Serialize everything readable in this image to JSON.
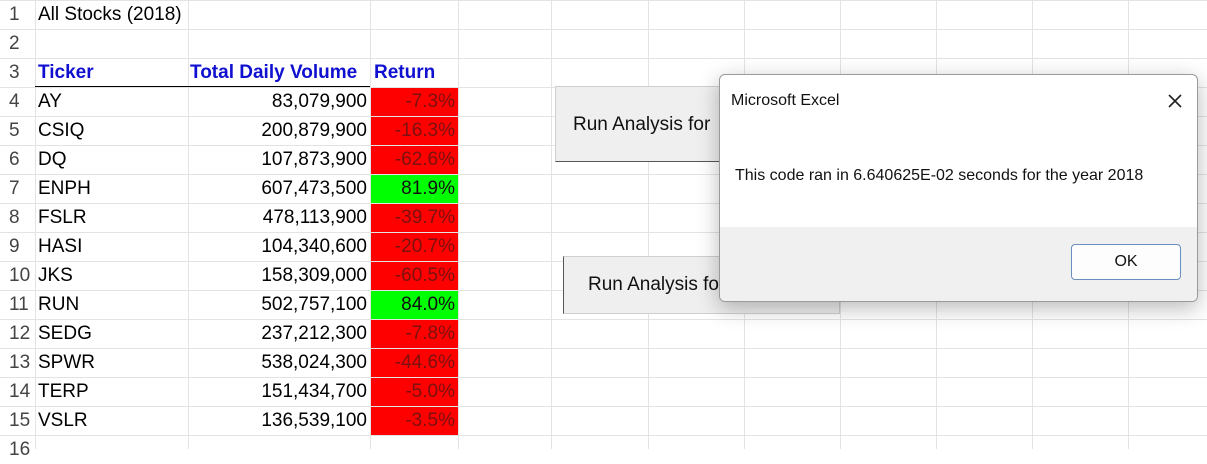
{
  "sheet": {
    "title": "All Stocks (2018)",
    "row_numbers": [
      "1",
      "2",
      "3",
      "4",
      "5",
      "6",
      "7",
      "8",
      "9",
      "10",
      "11",
      "12",
      "13",
      "14",
      "15",
      "16"
    ],
    "headers": {
      "ticker": "Ticker",
      "volume": "Total Daily Volume",
      "return": "Return"
    },
    "rows": [
      {
        "ticker": "AY",
        "volume": "83,079,900",
        "return": "-7.3%",
        "status": "negative"
      },
      {
        "ticker": "CSIQ",
        "volume": "200,879,900",
        "return": "-16.3%",
        "status": "negative"
      },
      {
        "ticker": "DQ",
        "volume": "107,873,900",
        "return": "-62.6%",
        "status": "negative"
      },
      {
        "ticker": "ENPH",
        "volume": "607,473,500",
        "return": "81.9%",
        "status": "positive"
      },
      {
        "ticker": "FSLR",
        "volume": "478,113,900",
        "return": "-39.7%",
        "status": "negative"
      },
      {
        "ticker": "HASI",
        "volume": "104,340,600",
        "return": "-20.7%",
        "status": "negative"
      },
      {
        "ticker": "JKS",
        "volume": "158,309,000",
        "return": "-60.5%",
        "status": "negative"
      },
      {
        "ticker": "RUN",
        "volume": "502,757,100",
        "return": "84.0%",
        "status": "positive"
      },
      {
        "ticker": "SEDG",
        "volume": "237,212,300",
        "return": "-7.8%",
        "status": "negative"
      },
      {
        "ticker": "SPWR",
        "volume": "538,024,300",
        "return": "-44.6%",
        "status": "negative"
      },
      {
        "ticker": "TERP",
        "volume": "151,434,700",
        "return": "-5.0%",
        "status": "negative"
      },
      {
        "ticker": "VSLR",
        "volume": "136,539,100",
        "return": "-3.5%",
        "status": "negative"
      }
    ],
    "colors": {
      "header_text": "#1010d0",
      "negative_fill": "#ff0000",
      "positive_fill": "#00ff00"
    }
  },
  "buttons": {
    "run_analysis_1": "Run Analysis for",
    "run_analysis_2": "Run Analysis fo"
  },
  "dialog": {
    "title": "Microsoft Excel",
    "message": "This code ran in 6.640625E-02 seconds for the year 2018",
    "ok_label": "OK",
    "close_icon": "close-icon"
  }
}
